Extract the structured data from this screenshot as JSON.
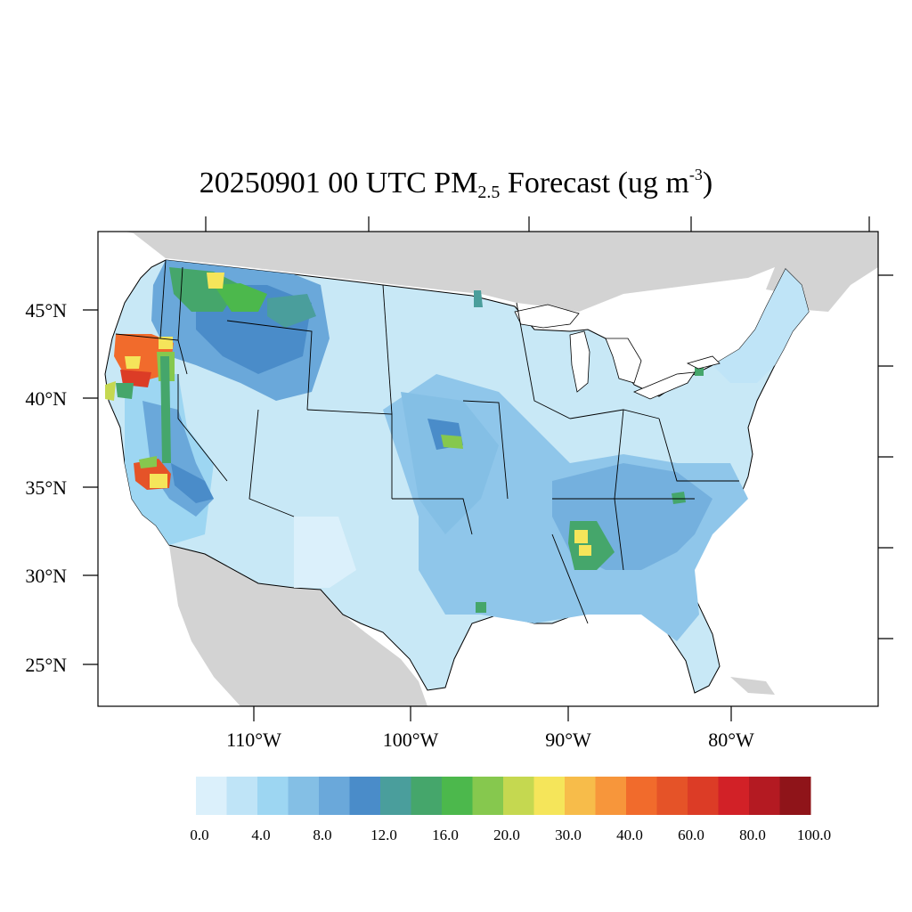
{
  "map": {
    "title_prefix": "20250901 00 UTC PM",
    "title_sub": "2.5",
    "title_mid": " Forecast (ug m",
    "title_sup": "-3",
    "title_suffix": ")",
    "lat_labels": [
      "45°N",
      "40°N",
      "35°N",
      "30°N",
      "25°N"
    ],
    "lon_labels": [
      "110°W",
      "100°W",
      "90°W",
      "80°W"
    ],
    "land_color": "#c8e8f6",
    "background_land": "#d3d3d3",
    "water_color": "#ffffff"
  },
  "colorbar": {
    "colors": [
      "#dbf0fb",
      "#bfe4f7",
      "#9dd6f2",
      "#84bfe5",
      "#6aa8da",
      "#4a8cc9",
      "#4a9e9c",
      "#45a66b",
      "#4cb84c",
      "#86c84e",
      "#c5d850",
      "#f5e55a",
      "#f7bc4a",
      "#f7963b",
      "#f16b2c",
      "#e55328",
      "#dc3c26",
      "#d22127",
      "#b41a22",
      "#8f1419"
    ],
    "labels": [
      "0.0",
      "4.0",
      "8.0",
      "12.0",
      "16.0",
      "20.0",
      "30.0",
      "40.0",
      "60.0",
      "80.0",
      "100.0"
    ]
  }
}
